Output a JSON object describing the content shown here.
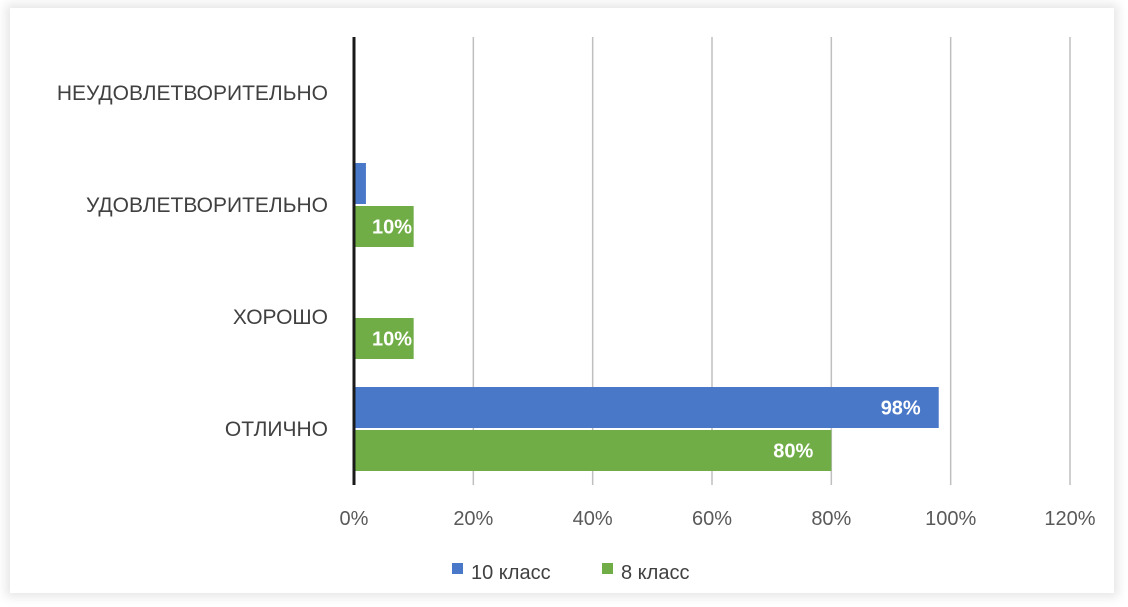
{
  "chart_data": {
    "type": "bar",
    "orientation": "horizontal",
    "categories": [
      "НЕУДОВЛЕТВОРИТЕЛЬНО",
      "УДОВЛЕТВОРИТЕЛЬНО",
      "ХОРОШО",
      "ОТЛИЧНО"
    ],
    "series": [
      {
        "name": "10 класс",
        "color": "#4a78c8",
        "values": [
          0,
          2,
          0,
          98
        ]
      },
      {
        "name": "8 класс",
        "color": "#70ad47",
        "values": [
          0,
          10,
          10,
          80
        ]
      }
    ],
    "data_labels": [
      [
        "0%",
        "2%",
        "0%",
        "98%"
      ],
      [
        "0%",
        "10%",
        "10%",
        "80%"
      ]
    ],
    "xlim": [
      0,
      120
    ],
    "xticks": [
      "0%",
      "20%",
      "40%",
      "60%",
      "80%",
      "100%",
      "120%"
    ],
    "grid": "vertical",
    "legend_position": "bottom"
  }
}
